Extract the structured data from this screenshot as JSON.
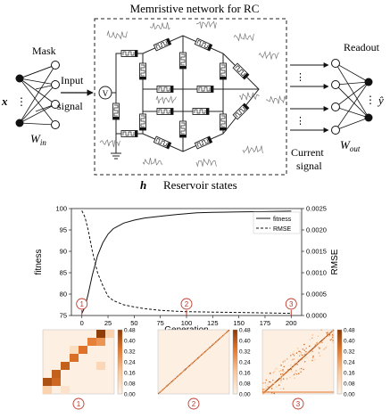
{
  "diagram": {
    "title": "Memristive network for RC",
    "mask_label": "Mask",
    "x_label": "x",
    "win_label": "W",
    "win_sub": "in",
    "input_signal_line1": "Input",
    "input_signal_line2": "signal",
    "source_symbol": "V",
    "h_label": "h",
    "reservoir_label": "Reservoir states",
    "current_signal_line1": "Current",
    "current_signal_line2": "signal",
    "readout_label": "Readout",
    "yhat_label": "ŷ",
    "wout_label": "W",
    "wout_sub": "out"
  },
  "chart_data": [
    {
      "type": "line",
      "xlabel": "Generation",
      "ylabel": "fitness",
      "y2label": "RMSE",
      "x_ticks": [
        0,
        25,
        50,
        75,
        100,
        125,
        150,
        175,
        200
      ],
      "y_ticks": [
        75,
        80,
        85,
        90,
        95,
        100
      ],
      "y2_ticks": [
        "0.0000",
        "0.0005",
        "0.0010",
        "0.0015",
        "0.0020",
        "0.0025"
      ],
      "xlim": [
        -10,
        210
      ],
      "ylim": [
        75,
        100
      ],
      "y2lim": [
        0,
        0.0025
      ],
      "legend_position": "top-right",
      "series": [
        {
          "name": "fitness",
          "axis": "left",
          "style": "solid",
          "x": [
            0,
            3,
            6,
            10,
            15,
            20,
            25,
            30,
            40,
            50,
            60,
            75,
            90,
            100,
            110,
            125,
            150,
            175,
            200
          ],
          "values": [
            75.5,
            77,
            80,
            84.5,
            89,
            92,
            94,
            95.3,
            96.6,
            97.3,
            97.8,
            98.2,
            98.6,
            98.8,
            99.0,
            99.1,
            99.2,
            99.3,
            99.4
          ]
        },
        {
          "name": "RMSE",
          "axis": "right",
          "style": "dashed",
          "x": [
            0,
            3,
            6,
            10,
            15,
            20,
            25,
            30,
            40,
            50,
            60,
            75,
            90,
            100,
            125,
            150,
            175,
            200
          ],
          "values": [
            0.00245,
            0.0023,
            0.002,
            0.0015,
            0.001,
            0.0007,
            0.00045,
            0.00035,
            0.00025,
            0.0002,
            0.00016,
            0.00012,
            0.0001,
            9e-05,
            8e-05,
            7e-05,
            6e-05,
            5e-05
          ]
        }
      ],
      "markers": [
        {
          "label": "1",
          "x": 0
        },
        {
          "label": "2",
          "x": 100
        },
        {
          "label": "3",
          "x": 200
        }
      ]
    },
    {
      "type": "heatmap",
      "title": "1",
      "grid_size": 8,
      "colorbar_ticks": [
        "0.48",
        "0.40",
        "0.32",
        "0.24",
        "0.16",
        "0.08",
        "0.00"
      ],
      "cells": [
        {
          "row": 0,
          "col": 6,
          "value": 0.47
        },
        {
          "row": 0,
          "col": 7,
          "value": 0.12
        },
        {
          "row": 1,
          "col": 5,
          "value": 0.3
        },
        {
          "row": 1,
          "col": 6,
          "value": 0.26
        },
        {
          "row": 2,
          "col": 4,
          "value": 0.33
        },
        {
          "row": 2,
          "col": 3,
          "value": 0.08
        },
        {
          "row": 3,
          "col": 3,
          "value": 0.34
        },
        {
          "row": 4,
          "col": 2,
          "value": 0.38
        },
        {
          "row": 4,
          "col": 6,
          "value": 0.1
        },
        {
          "row": 5,
          "col": 1,
          "value": 0.38
        },
        {
          "row": 6,
          "col": 0,
          "value": 0.42
        },
        {
          "row": 6,
          "col": 1,
          "value": 0.36
        },
        {
          "row": 7,
          "col": 0,
          "value": 0.12
        },
        {
          "row": 7,
          "col": 2,
          "value": 0.06
        }
      ]
    },
    {
      "type": "heatmap",
      "title": "2",
      "pattern": "diagonal",
      "colorbar_ticks": [
        "0.48",
        "0.40",
        "0.32",
        "0.24",
        "0.16",
        "0.08",
        "0.00"
      ]
    },
    {
      "type": "heatmap",
      "title": "3",
      "pattern": "diagonal with scattered off-diagonal entries",
      "colorbar_ticks": [
        "0.48",
        "0.40",
        "0.32",
        "0.24",
        "0.16",
        "0.08",
        "0.00"
      ]
    }
  ]
}
